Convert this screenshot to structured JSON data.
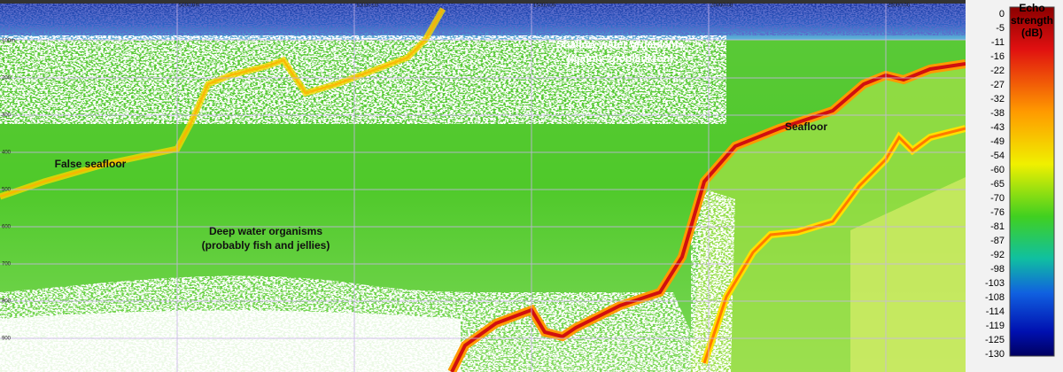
{
  "x_axis": {
    "ticks": [
      "5000.0m",
      "10000.00",
      "15000.00",
      "20000.00",
      "25000.00"
    ]
  },
  "y_axis": {
    "ticks": [
      "100m",
      "200",
      "300",
      "400",
      "500",
      "600",
      "700",
      "800",
      "900"
    ]
  },
  "annotations": {
    "shallow": [
      "Shallow water organisms",
      "(mainly zooplankton)"
    ],
    "seafloor": "Seafloor",
    "false_seafloor": "False seafloor",
    "deep": [
      "Deep water organisms",
      "(probably fish and jellies)"
    ]
  },
  "colorbar": {
    "title": [
      "Echo",
      "strength",
      "(dB)"
    ],
    "ticks": [
      "0",
      "-5",
      "-11",
      "-16",
      "-22",
      "-27",
      "-32",
      "-38",
      "-43",
      "-49",
      "-54",
      "-60",
      "-65",
      "-70",
      "-76",
      "-81",
      "-87",
      "-92",
      "-98",
      "-103",
      "-108",
      "-114",
      "-119",
      "-125",
      "-130"
    ]
  }
}
